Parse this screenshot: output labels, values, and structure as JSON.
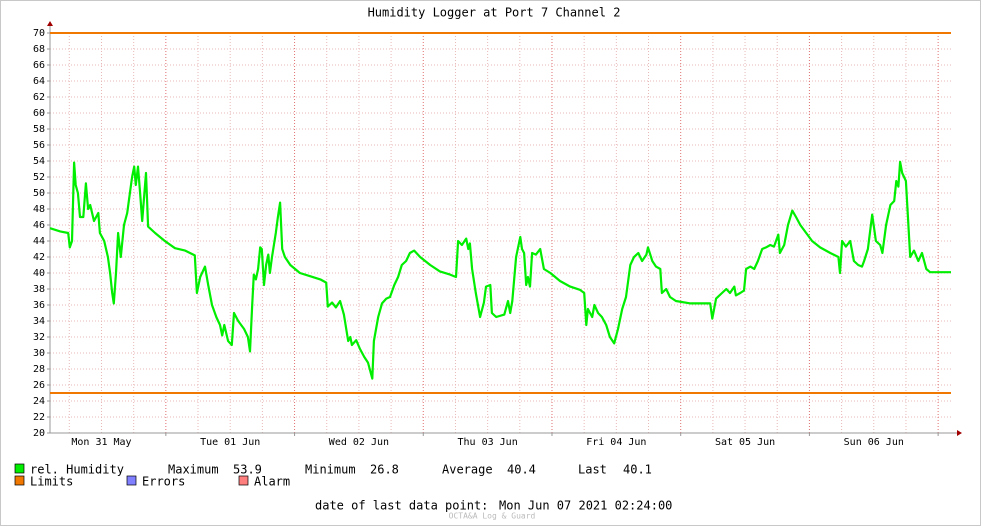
{
  "chart_data": {
    "type": "line",
    "title": "Humidity Logger at Port 7 Channel 2",
    "x": [
      2.4,
      4.3,
      5.8,
      6.1,
      6.5,
      6.9,
      7.2,
      7.6,
      8.0,
      8.6,
      9.1,
      9.5,
      9.9,
      10.6,
      11.4,
      11.7,
      12.5,
      13.2,
      13.6,
      14.0,
      14.3,
      14.7,
      15.1,
      15.6,
      16.2,
      16.8,
      17.3,
      17.7,
      18.1,
      18.4,
      18.8,
      19.2,
      19.6,
      20.3,
      20.7,
      22.0,
      23.8,
      25.7,
      27.6,
      29.4,
      29.8,
      30.4,
      31.3,
      31.9,
      32.6,
      33.4,
      34.1,
      34.5,
      34.9,
      35.6,
      36.3,
      36.7,
      37.5,
      38.6,
      39.3,
      39.7,
      40.1,
      40.4,
      40.8,
      41.2,
      41.6,
      41.9,
      42.3,
      42.7,
      43.1,
      43.4,
      43.8,
      44.5,
      44.9,
      45.3,
      45.7,
      46.2,
      47.2,
      49.0,
      50.9,
      52.8,
      53.9,
      54.2,
      55.0,
      55.7,
      56.5,
      57.2,
      58.0,
      58.4,
      58.7,
      59.5,
      60.2,
      61.0,
      61.7,
      62.5,
      62.8,
      63.6,
      64.3,
      65.1,
      65.8,
      66.6,
      67.3,
      68.0,
      68.8,
      69.5,
      70.3,
      71.4,
      73.3,
      75.1,
      77.0,
      78.1,
      78.5,
      79.2,
      80.0,
      80.4,
      80.7,
      81.1,
      81.8,
      82.6,
      83.3,
      83.7,
      84.5,
      84.8,
      85.6,
      87.1,
      87.8,
      88.2,
      88.6,
      89.3,
      90.1,
      90.4,
      90.8,
      91.2,
      91.5,
      91.9,
      92.3,
      93.0,
      93.8,
      94.5,
      95.7,
      97.5,
      99.4,
      101.2,
      102.0,
      102.4,
      102.7,
      103.5,
      103.9,
      104.6,
      105.3,
      106.1,
      106.8,
      107.6,
      108.3,
      109.1,
      109.8,
      110.6,
      111.3,
      112.1,
      112.8,
      113.6,
      113.9,
      114.7,
      115.4,
      116.2,
      116.5,
      117.3,
      118.0,
      119.1,
      121.8,
      125.5,
      125.9,
      126.6,
      127.7,
      128.5,
      129.2,
      130.0,
      130.3,
      131.1,
      131.8,
      132.2,
      133.0,
      133.7,
      134.4,
      135.2,
      135.9,
      136.7,
      137.4,
      138.2,
      138.5,
      139.3,
      140.0,
      140.8,
      141.5,
      142.3,
      143.4,
      144.5,
      146.0,
      147.9,
      149.4,
      149.7,
      150.1,
      150.8,
      151.6,
      152.3,
      153.1,
      153.8,
      154.2,
      154.9,
      155.7,
      156.4,
      157.2,
      157.6,
      158.3,
      159.1,
      159.8,
      160.2,
      160.6,
      160.9,
      161.3,
      162.0,
      162.8,
      163.5,
      164.3,
      165.0,
      165.8,
      166.5,
      168.4,
      170.4
    ],
    "series": [
      {
        "name": "rel. Humidity",
        "color": "#00ee00",
        "values": [
          45.6,
          45.2,
          45.0,
          43.2,
          44,
          53.8,
          51,
          50,
          47,
          47,
          51.2,
          48,
          48.5,
          46.5,
          47.5,
          45,
          44,
          42,
          40,
          37.5,
          36.2,
          40,
          45,
          42,
          46,
          47.5,
          50,
          52,
          53.3,
          51,
          53.3,
          50,
          46.5,
          52.5,
          45.8,
          45,
          44,
          43.1,
          42.8,
          42.2,
          37.5,
          39.5,
          40.8,
          38.5,
          36,
          34.5,
          33.5,
          32.2,
          33.5,
          31.5,
          31,
          35,
          34,
          33,
          32,
          30.2,
          36,
          39.8,
          39.2,
          40.5,
          43.2,
          43,
          38.5,
          41,
          42.3,
          40,
          42,
          45,
          47,
          48.8,
          43,
          42,
          41,
          40,
          39.6,
          39.2,
          38.8,
          35.8,
          36.3,
          35.7,
          36.5,
          34.8,
          31.5,
          32,
          31,
          31.6,
          30.5,
          29.5,
          28.8,
          26.8,
          31.5,
          34.5,
          36.2,
          36.8,
          37,
          38.5,
          39.5,
          41,
          41.5,
          42.5,
          42.8,
          42,
          41,
          40.2,
          39.8,
          39.5,
          44,
          43.5,
          44.3,
          43,
          43.7,
          40.5,
          37.5,
          34.5,
          36.3,
          38.3,
          38.5,
          35,
          34.5,
          34.8,
          36.5,
          35,
          36.5,
          42,
          44.5,
          43,
          42.5,
          38.5,
          39.5,
          38.3,
          42.5,
          42.3,
          43,
          40.5,
          40,
          39,
          38.3,
          37.9,
          37.5,
          33.5,
          35.5,
          34.5,
          36,
          35,
          34.5,
          33.5,
          32,
          31.2,
          33,
          35.5,
          37,
          41,
          42,
          42.5,
          41.5,
          42.3,
          43.2,
          41.5,
          40.8,
          40.5,
          37.5,
          38,
          37,
          36.5,
          36.2,
          36.2,
          34.3,
          36.8,
          37.5,
          38,
          37.5,
          38.3,
          37.2,
          37.5,
          37.8,
          40.5,
          40.8,
          40.5,
          41.5,
          43,
          43.2,
          43.5,
          43.3,
          44.8,
          42.5,
          43.5,
          46,
          47.8,
          47,
          46,
          45,
          44,
          43.2,
          42.5,
          42,
          40,
          44,
          43.3,
          44,
          41.5,
          41,
          40.8,
          41.5,
          43,
          47.3,
          44,
          43.5,
          42.5,
          46,
          48.5,
          49,
          51.5,
          50.8,
          53.9,
          52.5,
          51.5,
          42,
          42.8,
          41.5,
          42.5,
          40.5,
          40.1,
          40.1,
          40.1
        ]
      }
    ],
    "limits": {
      "name": "Limits",
      "color": "#f07800",
      "values": [
        70,
        25
      ]
    },
    "legend_extra": [
      {
        "name": "Errors",
        "color": "#7f7fff"
      },
      {
        "name": "Alarm",
        "color": "#ff7f7f"
      }
    ],
    "stats": [
      {
        "label": "Maximum",
        "value": 53.9
      },
      {
        "label": "Minimum",
        "value": 26.8
      },
      {
        "label": "Average",
        "value": 40.4
      },
      {
        "label": "Last",
        "value": 40.1
      }
    ],
    "last_point_label": "date of last data point:",
    "last_point": "Mon Jun 07 2021 02:24:00",
    "footer": "OCTA&A Log & Guard",
    "xlim": [
      2.4,
      170.4
    ],
    "xticks": [
      {
        "value": 12,
        "label": "Mon 31 May"
      },
      {
        "value": 36,
        "label": "Tue 01 Jun"
      },
      {
        "value": 60,
        "label": "Wed 02 Jun"
      },
      {
        "value": 84,
        "label": "Thu 03 Jun"
      },
      {
        "value": 108,
        "label": "Fri 04 Jun"
      },
      {
        "value": 132,
        "label": "Sat 05 Jun"
      },
      {
        "value": 156,
        "label": "Sun 06 Jun"
      }
    ],
    "xmajor": [
      24,
      48,
      72,
      96,
      120,
      144,
      168
    ],
    "xminor": [
      6,
      12,
      18,
      30,
      36,
      42,
      54,
      60,
      66,
      78,
      84,
      90,
      102,
      108,
      114,
      126,
      132,
      138,
      150,
      156,
      162
    ],
    "ylim": [
      20,
      70
    ],
    "yticks": [
      20,
      22,
      24,
      26,
      28,
      30,
      32,
      34,
      36,
      38,
      40,
      42,
      44,
      46,
      48,
      50,
      52,
      54,
      56,
      58,
      60,
      62,
      64,
      66,
      68,
      70
    ],
    "grid": true
  }
}
